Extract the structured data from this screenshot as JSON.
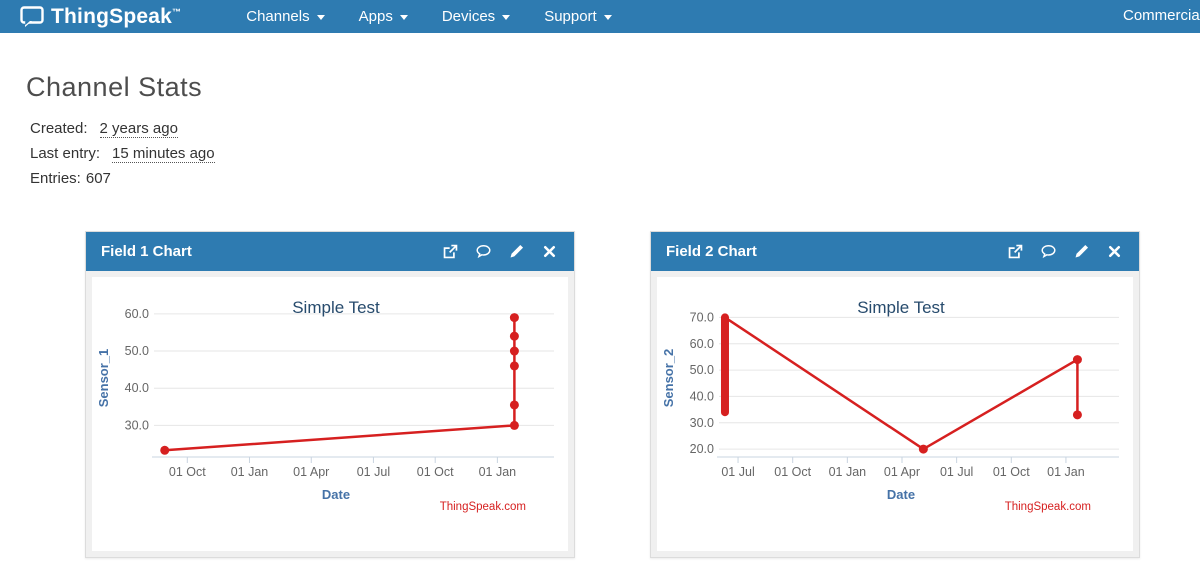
{
  "colors": {
    "navbar_bg": "#2e7bb1",
    "panel_header_bg": "#2e7bb1",
    "series_red": "#d62020",
    "chart_title": "#274b6d",
    "axis_title_blue": "#4572a7",
    "tick_label_gray": "#666666",
    "grid_gray": "#e6e6e6"
  },
  "navbar": {
    "brand": "ThingSpeak",
    "brand_tm": "™",
    "items": [
      {
        "label": "Channels"
      },
      {
        "label": "Apps"
      },
      {
        "label": "Devices"
      },
      {
        "label": "Support"
      }
    ],
    "right_item": "Commercial Use"
  },
  "page": {
    "title": "Channel Stats",
    "created_label": "Created:",
    "created_value": "2 years ago",
    "last_entry_label": "Last entry:",
    "last_entry_value": "15 minutes ago",
    "entries_label": "Entries:",
    "entries_value": "607"
  },
  "panels": [
    {
      "title": "Field 1 Chart"
    },
    {
      "title": "Field 2 Chart"
    }
  ],
  "chart_data": [
    {
      "type": "line",
      "title": "Simple Test",
      "xlabel": "Date",
      "ylabel": "Sensor_1",
      "credits": "ThingSpeak.com",
      "color": "#d62020",
      "grid": true,
      "ylim": [
        21.5,
        64
      ],
      "y_ticks": [
        30,
        40,
        50,
        60
      ],
      "x_ticks": [
        {
          "label": "01 Oct",
          "f": 0.074
        },
        {
          "label": "01 Jan",
          "f": 0.231
        },
        {
          "label": "01 Apr",
          "f": 0.387
        },
        {
          "label": "01 Jul",
          "f": 0.544
        },
        {
          "label": "01 Oct",
          "f": 0.7
        },
        {
          "label": "01 Jan",
          "f": 0.857
        }
      ],
      "points": [
        {
          "f": 0.017,
          "y": 23.3
        },
        {
          "f": 0.9,
          "y": 30
        },
        {
          "f": 0.9,
          "y": 35.5
        },
        {
          "f": 0.9,
          "y": 46
        },
        {
          "f": 0.9,
          "y": 50
        },
        {
          "f": 0.9,
          "y": 54
        },
        {
          "f": 0.9,
          "y": 59
        }
      ]
    },
    {
      "type": "line",
      "title": "Simple Test",
      "xlabel": "Date",
      "ylabel": "Sensor_2",
      "credits": "ThingSpeak.com",
      "color": "#d62020",
      "grid": true,
      "ylim": [
        17,
        77
      ],
      "y_ticks": [
        20,
        30,
        40,
        50,
        60,
        70
      ],
      "x_ticks": [
        {
          "label": "01 Jul",
          "f": 0.038
        },
        {
          "label": "01 Oct",
          "f": 0.176
        },
        {
          "label": "01 Jan",
          "f": 0.314
        },
        {
          "label": "01 Apr",
          "f": 0.452
        },
        {
          "label": "01 Jul",
          "f": 0.59
        },
        {
          "label": "01 Oct",
          "f": 0.728
        },
        {
          "label": "01 Jan",
          "f": 0.866
        }
      ],
      "cluster": {
        "f": 0.005,
        "y_min": 34,
        "y_max": 70
      },
      "points": [
        {
          "f": 0.005,
          "y": 70,
          "marker": false
        },
        {
          "f": 0.506,
          "y": 20
        },
        {
          "f": 0.895,
          "y": 54
        },
        {
          "f": 0.895,
          "y": 33
        }
      ]
    }
  ]
}
